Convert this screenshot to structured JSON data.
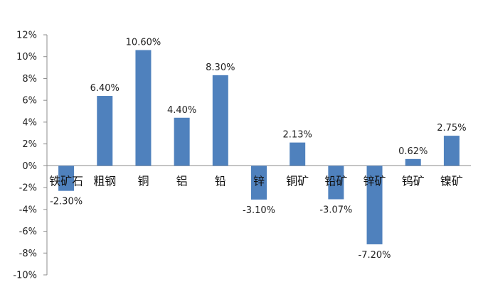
{
  "chart_data": {
    "type": "bar",
    "categories": [
      "铁矿石",
      "粗钢",
      "铜",
      "铝",
      "铅",
      "锌",
      "铜矿",
      "铅矿",
      "锌矿",
      "钨矿",
      "镍矿"
    ],
    "values": [
      -2.3,
      6.4,
      10.6,
      4.4,
      8.3,
      -3.1,
      2.13,
      -3.07,
      -7.2,
      0.62,
      2.75
    ],
    "data_labels": [
      "-2.30%",
      "6.40%",
      "10.60%",
      "4.40%",
      "8.30%",
      "-3.10%",
      "2.13%",
      "-3.07%",
      "-7.20%",
      "0.62%",
      "2.75%"
    ],
    "y_ticks": [
      "12%",
      "10%",
      "8%",
      "6%",
      "4%",
      "2%",
      "0%",
      "-2%",
      "-4%",
      "-6%",
      "-8%",
      "-10%"
    ],
    "ylim": [
      -10,
      12
    ],
    "bar_color": "#4f81bd",
    "grid": false,
    "title": "",
    "xlabel": "",
    "ylabel": ""
  }
}
